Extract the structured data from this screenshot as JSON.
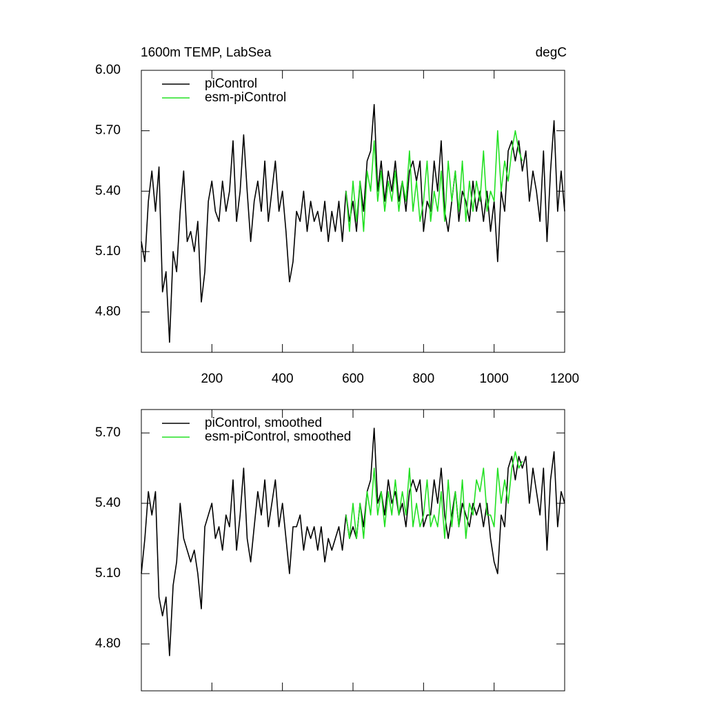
{
  "chart_data": [
    {
      "type": "line",
      "title": "1600m TEMP, LabSea",
      "units": "degC",
      "x": [
        0,
        10,
        20,
        30,
        40,
        50,
        60,
        70,
        80,
        90,
        100,
        110,
        120,
        130,
        140,
        150,
        160,
        170,
        180,
        190,
        200,
        210,
        220,
        230,
        240,
        250,
        260,
        270,
        280,
        290,
        300,
        310,
        320,
        330,
        340,
        350,
        360,
        370,
        380,
        390,
        400,
        410,
        420,
        430,
        440,
        450,
        460,
        470,
        480,
        490,
        500,
        510,
        520,
        530,
        540,
        550,
        560,
        570,
        580,
        590,
        600,
        610,
        620,
        630,
        640,
        650,
        660,
        670,
        680,
        690,
        700,
        710,
        720,
        730,
        740,
        750,
        760,
        770,
        780,
        790,
        800,
        810,
        820,
        830,
        840,
        850,
        860,
        870,
        880,
        890,
        900,
        910,
        920,
        930,
        940,
        950,
        960,
        970,
        980,
        990,
        1000,
        1010,
        1020,
        1030,
        1040,
        1050,
        1060,
        1070,
        1080,
        1090,
        1100,
        1110,
        1120,
        1130,
        1140,
        1150,
        1160,
        1170,
        1180,
        1190,
        1200
      ],
      "series": [
        {
          "name": "piControl",
          "color": "#000000",
          "values": [
            5.15,
            5.05,
            5.35,
            5.5,
            5.3,
            5.52,
            4.9,
            5.0,
            4.65,
            5.1,
            5.0,
            5.3,
            5.5,
            5.15,
            5.2,
            5.1,
            5.25,
            4.85,
            5.0,
            5.35,
            5.45,
            5.3,
            5.25,
            5.45,
            5.3,
            5.4,
            5.65,
            5.25,
            5.4,
            5.68,
            5.4,
            5.15,
            5.35,
            5.45,
            5.3,
            5.55,
            5.25,
            5.4,
            5.55,
            5.3,
            5.4,
            5.2,
            4.95,
            5.05,
            5.3,
            5.25,
            5.4,
            5.2,
            5.35,
            5.25,
            5.3,
            5.2,
            5.35,
            5.15,
            5.3,
            5.2,
            5.35,
            5.15,
            5.4,
            5.25,
            5.35,
            5.2,
            5.45,
            5.3,
            5.55,
            5.6,
            5.83,
            5.4,
            5.55,
            5.35,
            5.5,
            5.4,
            5.55,
            5.35,
            5.45,
            5.3,
            5.5,
            5.55,
            5.45,
            5.55,
            5.2,
            5.35,
            5.3,
            5.55,
            5.4,
            5.65,
            5.3,
            5.2,
            5.35,
            5.5,
            5.25,
            5.4,
            5.35,
            5.25,
            5.45,
            5.3,
            5.4,
            5.25,
            5.4,
            5.2,
            5.35,
            5.05,
            5.4,
            5.3,
            5.6,
            5.65,
            5.55,
            5.65,
            5.5,
            5.6,
            5.35,
            5.5,
            5.4,
            5.25,
            5.6,
            5.15,
            5.5,
            5.75,
            5.3,
            5.5,
            5.3
          ]
        },
        {
          "name": "esm-piControl",
          "color": "#22e022",
          "x": [
            580,
            590,
            600,
            610,
            620,
            630,
            640,
            650,
            660,
            670,
            680,
            690,
            700,
            710,
            720,
            730,
            740,
            750,
            760,
            770,
            780,
            790,
            800,
            810,
            820,
            830,
            840,
            850,
            860,
            870,
            880,
            890,
            900,
            910,
            920,
            930,
            940,
            950,
            960,
            970,
            980,
            990,
            1000,
            1010,
            1020,
            1030,
            1040,
            1050,
            1060,
            1070,
            1080
          ],
          "values": [
            5.4,
            5.2,
            5.45,
            5.25,
            5.45,
            5.2,
            5.5,
            5.4,
            5.65,
            5.35,
            5.5,
            5.3,
            5.45,
            5.35,
            5.5,
            5.3,
            5.45,
            5.35,
            5.6,
            5.3,
            5.45,
            5.25,
            5.35,
            5.55,
            5.25,
            5.4,
            5.3,
            5.5,
            5.25,
            5.55,
            5.35,
            5.5,
            5.3,
            5.55,
            5.25,
            5.45,
            5.3,
            5.45,
            5.35,
            5.6,
            5.3,
            5.4,
            5.35,
            5.7,
            5.4,
            5.55,
            5.45,
            5.6,
            5.7,
            5.6,
            5.55
          ]
        }
      ],
      "xlim": [
        0,
        1200
      ],
      "xticks": [
        200,
        400,
        600,
        800,
        1000,
        1200
      ],
      "xtick_labels": true,
      "ylim": [
        4.6,
        6.0
      ],
      "yticks": [
        {
          "value": 4.8,
          "label": "4.80"
        },
        {
          "value": 5.1,
          "label": "5.10"
        },
        {
          "value": 5.4,
          "label": "5.40"
        },
        {
          "value": 5.7,
          "label": "5.70"
        },
        {
          "value": 6.0,
          "label": "6.00"
        }
      ],
      "legend": "top-left"
    },
    {
      "type": "line",
      "x": [
        0,
        10,
        20,
        30,
        40,
        50,
        60,
        70,
        80,
        90,
        100,
        110,
        120,
        130,
        140,
        150,
        160,
        170,
        180,
        190,
        200,
        210,
        220,
        230,
        240,
        250,
        260,
        270,
        280,
        290,
        300,
        310,
        320,
        330,
        340,
        350,
        360,
        370,
        380,
        390,
        400,
        410,
        420,
        430,
        440,
        450,
        460,
        470,
        480,
        490,
        500,
        510,
        520,
        530,
        540,
        550,
        560,
        570,
        580,
        590,
        600,
        610,
        620,
        630,
        640,
        650,
        660,
        670,
        680,
        690,
        700,
        710,
        720,
        730,
        740,
        750,
        760,
        770,
        780,
        790,
        800,
        810,
        820,
        830,
        840,
        850,
        860,
        870,
        880,
        890,
        900,
        910,
        920,
        930,
        940,
        950,
        960,
        970,
        980,
        990,
        1000,
        1010,
        1020,
        1030,
        1040,
        1050,
        1060,
        1070,
        1080,
        1090,
        1100,
        1110,
        1120,
        1130,
        1140,
        1150,
        1160,
        1170,
        1180,
        1190,
        1200
      ],
      "series": [
        {
          "name": "piControl, smoothed",
          "color": "#000000",
          "values": [
            5.1,
            5.25,
            5.45,
            5.35,
            5.45,
            5.0,
            4.92,
            5.0,
            4.75,
            5.05,
            5.15,
            5.4,
            5.25,
            5.2,
            5.15,
            5.2,
            5.1,
            4.95,
            5.3,
            5.35,
            5.4,
            5.25,
            5.3,
            5.2,
            5.35,
            5.3,
            5.5,
            5.2,
            5.35,
            5.55,
            5.25,
            5.15,
            5.3,
            5.45,
            5.35,
            5.5,
            5.3,
            5.4,
            5.5,
            5.3,
            5.4,
            5.25,
            5.1,
            5.3,
            5.3,
            5.35,
            5.2,
            5.3,
            5.25,
            5.3,
            5.2,
            5.3,
            5.15,
            5.25,
            5.2,
            5.25,
            5.3,
            5.2,
            5.35,
            5.25,
            5.3,
            5.25,
            5.4,
            5.3,
            5.45,
            5.5,
            5.72,
            5.4,
            5.45,
            5.35,
            5.5,
            5.4,
            5.45,
            5.35,
            5.4,
            5.3,
            5.45,
            5.5,
            5.45,
            5.5,
            5.3,
            5.35,
            5.35,
            5.5,
            5.4,
            5.55,
            5.35,
            5.25,
            5.35,
            5.45,
            5.3,
            5.4,
            5.35,
            5.3,
            5.4,
            5.35,
            5.4,
            5.3,
            5.4,
            5.25,
            5.15,
            5.1,
            5.35,
            5.3,
            5.55,
            5.6,
            5.5,
            5.6,
            5.55,
            5.6,
            5.4,
            5.55,
            5.45,
            5.35,
            5.55,
            5.2,
            5.5,
            5.62,
            5.3,
            5.45,
            5.4
          ]
        },
        {
          "name": "esm-piControl, smoothed",
          "color": "#22e022",
          "x": [
            580,
            590,
            600,
            610,
            620,
            630,
            640,
            650,
            660,
            670,
            680,
            690,
            700,
            710,
            720,
            730,
            740,
            750,
            760,
            770,
            780,
            790,
            800,
            810,
            820,
            830,
            840,
            850,
            860,
            870,
            880,
            890,
            900,
            910,
            920,
            930,
            940,
            950,
            960,
            970,
            980,
            990,
            1000,
            1010,
            1020,
            1030,
            1040,
            1050,
            1060,
            1070,
            1080
          ],
          "values": [
            5.35,
            5.25,
            5.4,
            5.25,
            5.4,
            5.25,
            5.45,
            5.35,
            5.55,
            5.35,
            5.45,
            5.3,
            5.45,
            5.35,
            5.5,
            5.35,
            5.45,
            5.35,
            5.55,
            5.3,
            5.4,
            5.3,
            5.35,
            5.5,
            5.3,
            5.35,
            5.3,
            5.45,
            5.25,
            5.5,
            5.3,
            5.45,
            5.3,
            5.5,
            5.25,
            5.4,
            5.35,
            5.5,
            5.45,
            5.55,
            5.35,
            5.35,
            5.3,
            5.55,
            5.4,
            5.5,
            5.4,
            5.55,
            5.62,
            5.55,
            5.58
          ]
        }
      ],
      "xlim": [
        0,
        1200
      ],
      "xticks": [
        200,
        400,
        600,
        800,
        1000,
        1200
      ],
      "xtick_labels": false,
      "ylim": [
        4.6,
        5.8
      ],
      "yticks": [
        {
          "value": 4.8,
          "label": "4.80"
        },
        {
          "value": 5.1,
          "label": "5.10"
        },
        {
          "value": 5.4,
          "label": "5.40"
        },
        {
          "value": 5.7,
          "label": "5.70"
        }
      ],
      "legend": "top-left"
    }
  ]
}
